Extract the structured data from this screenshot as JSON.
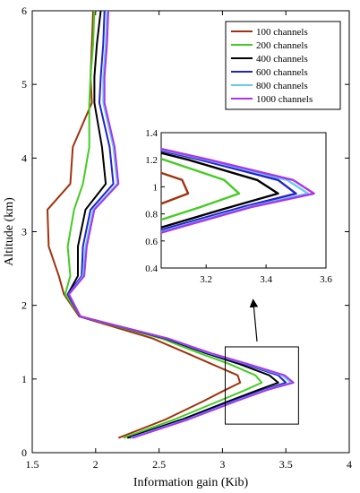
{
  "chart_data": {
    "type": "line",
    "xlabel": "Information gain (Kib)",
    "ylabel": "Altitude (km)",
    "xlim": [
      1.5,
      4
    ],
    "ylim": [
      0,
      6
    ],
    "xticks": [
      "1.5",
      "2",
      "2.5",
      "3",
      "3.5",
      "4"
    ],
    "yticks": [
      "0",
      "1",
      "2",
      "3",
      "4",
      "5",
      "6"
    ],
    "legend_position": "top-right",
    "altitude": [
      0.2,
      0.45,
      0.7,
      0.85,
      0.95,
      1.05,
      1.2,
      1.35,
      1.55,
      1.85,
      2.15,
      2.4,
      2.8,
      3.3,
      3.65,
      4.15,
      4.75,
      5.1,
      5.55,
      6.0
    ],
    "series": [
      {
        "name": "100 channels",
        "color": "#a0320e",
        "values": [
          2.18,
          2.55,
          2.85,
          3.02,
          3.14,
          3.12,
          2.92,
          2.72,
          2.45,
          1.87,
          1.75,
          1.71,
          1.63,
          1.62,
          1.8,
          1.82,
          1.97,
          1.96,
          1.97,
          1.98
        ]
      },
      {
        "name": "200 channels",
        "color": "#44cc22",
        "values": [
          2.22,
          2.62,
          2.97,
          3.18,
          3.31,
          3.26,
          3.06,
          2.82,
          2.52,
          1.88,
          1.76,
          1.8,
          1.78,
          1.83,
          1.9,
          1.95,
          1.95,
          1.96,
          1.98,
          1.99
        ]
      },
      {
        "name": "400 channels",
        "color": "#000000",
        "values": [
          2.25,
          2.68,
          3.05,
          3.28,
          3.44,
          3.37,
          3.14,
          2.87,
          2.55,
          1.88,
          1.78,
          1.86,
          1.86,
          1.92,
          2.08,
          2.05,
          1.99,
          1.99,
          2.01,
          2.04
        ]
      },
      {
        "name": "600 channels",
        "color": "#2222cc",
        "values": [
          2.27,
          2.71,
          3.08,
          3.32,
          3.5,
          3.44,
          3.18,
          2.89,
          2.56,
          1.88,
          1.78,
          1.89,
          1.9,
          1.96,
          2.14,
          2.11,
          2.03,
          2.04,
          2.06,
          2.07
        ]
      },
      {
        "name": "800 channels",
        "color": "#66ccee",
        "values": [
          2.28,
          2.72,
          3.1,
          3.34,
          3.54,
          3.47,
          3.2,
          2.9,
          2.57,
          1.88,
          1.79,
          1.9,
          1.92,
          1.98,
          2.17,
          2.14,
          2.06,
          2.06,
          2.08,
          2.09
        ]
      },
      {
        "name": "1000 channels",
        "color": "#aa33ee",
        "values": [
          2.29,
          2.73,
          3.11,
          3.35,
          3.56,
          3.49,
          3.21,
          2.91,
          2.57,
          1.88,
          1.79,
          1.91,
          1.93,
          1.99,
          2.18,
          2.15,
          2.07,
          2.07,
          2.09,
          2.1
        ]
      }
    ],
    "inset": {
      "xlim": [
        3.05,
        3.6
      ],
      "ylim": [
        0.4,
        1.4
      ],
      "xticks": [
        "3.2",
        "3.4",
        "3.6"
      ],
      "yticks": [
        "0.4",
        "0.6",
        "0.8",
        "1",
        "1.2",
        "1.4"
      ]
    }
  }
}
